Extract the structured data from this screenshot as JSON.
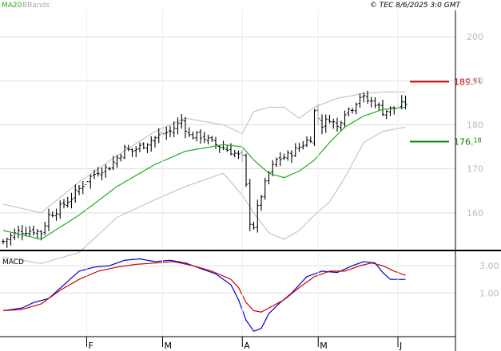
{
  "header": {
    "legend": [
      {
        "label": "MA20",
        "color": "#22aa22"
      },
      {
        "label": "BBands",
        "color": "#aaaaaa"
      }
    ],
    "copyright": "© TEC 8/6/2025 3:0 GMT"
  },
  "chart_data": [
    {
      "type": "ohlc",
      "title": "",
      "ylim": [
        152,
        206
      ],
      "y_ticks": [
        {
          "value": 160,
          "label": "160"
        },
        {
          "value": 170,
          "label": "170"
        },
        {
          "value": 180,
          "label": "180"
        },
        {
          "value": 190,
          "label": "190"
        },
        {
          "value": 200,
          "label": "200"
        }
      ],
      "x_labels": [
        {
          "index": 22,
          "label": "F"
        },
        {
          "index": 42,
          "label": "M"
        },
        {
          "index": 63,
          "label": "A"
        },
        {
          "index": 83,
          "label": "M"
        },
        {
          "index": 104,
          "label": "J"
        }
      ],
      "anchor_closes": [
        [
          0,
          153.5
        ],
        [
          4,
          155.8
        ],
        [
          8,
          156.0
        ],
        [
          10,
          155.5
        ],
        [
          12,
          159.5
        ],
        [
          14,
          160.5
        ],
        [
          18,
          163.5
        ],
        [
          22,
          167.5
        ],
        [
          25,
          169.5
        ],
        [
          28,
          170.5
        ],
        [
          32,
          174.5
        ],
        [
          34,
          174.0
        ],
        [
          38,
          176.0
        ],
        [
          42,
          178.0
        ],
        [
          44,
          178.5
        ],
        [
          47,
          181.0
        ],
        [
          49,
          177.5
        ],
        [
          52,
          177.5
        ],
        [
          56,
          175.5
        ],
        [
          60,
          174.0
        ],
        [
          63,
          172.5
        ],
        [
          64,
          166.0
        ],
        [
          65,
          158.0
        ],
        [
          66,
          157.0
        ],
        [
          67,
          161.0
        ],
        [
          68,
          164.0
        ],
        [
          70,
          169.0
        ],
        [
          72,
          172.0
        ],
        [
          75,
          173.0
        ],
        [
          78,
          175.0
        ],
        [
          81,
          177.0
        ],
        [
          82,
          183.0
        ],
        [
          84,
          180.0
        ],
        [
          86,
          181.5
        ],
        [
          88,
          179.5
        ],
        [
          90,
          183.0
        ],
        [
          92,
          184.0
        ],
        [
          94,
          186.5
        ],
        [
          96,
          185.5
        ],
        [
          98,
          185.0
        ],
        [
          100,
          183.0
        ],
        [
          102,
          183.5
        ],
        [
          104,
          184.0
        ],
        [
          106,
          185.0
        ]
      ],
      "ma20": [
        [
          0,
          156.0
        ],
        [
          10,
          154.0
        ],
        [
          20,
          159.5
        ],
        [
          30,
          166.0
        ],
        [
          40,
          171.0
        ],
        [
          48,
          174.0
        ],
        [
          58,
          175.5
        ],
        [
          63,
          175.0
        ],
        [
          66,
          172.0
        ],
        [
          70,
          169.0
        ],
        [
          74,
          168.0
        ],
        [
          78,
          169.5
        ],
        [
          82,
          172.0
        ],
        [
          86,
          176.0
        ],
        [
          90,
          179.5
        ],
        [
          95,
          182.0
        ],
        [
          100,
          183.5
        ],
        [
          106,
          184.0
        ]
      ],
      "bb_upper": [
        [
          0,
          162.0
        ],
        [
          10,
          160.0
        ],
        [
          20,
          167.0
        ],
        [
          30,
          173.0
        ],
        [
          40,
          178.5
        ],
        [
          48,
          181.5
        ],
        [
          58,
          180.0
        ],
        [
          63,
          178.0
        ],
        [
          66,
          183.0
        ],
        [
          70,
          184.0
        ],
        [
          74,
          184.0
        ],
        [
          78,
          181.5
        ],
        [
          82,
          184.0
        ],
        [
          88,
          186.0
        ],
        [
          94,
          187.0
        ],
        [
          100,
          187.5
        ],
        [
          106,
          187.5
        ]
      ],
      "bb_lower": [
        [
          0,
          150.0
        ],
        [
          10,
          148.5
        ],
        [
          20,
          151.0
        ],
        [
          30,
          159.0
        ],
        [
          40,
          163.0
        ],
        [
          48,
          166.0
        ],
        [
          58,
          169.0
        ],
        [
          63,
          164.0
        ],
        [
          66,
          160.0
        ],
        [
          70,
          155.5
        ],
        [
          74,
          154.0
        ],
        [
          78,
          156.0
        ],
        [
          82,
          159.5
        ],
        [
          86,
          162.5
        ],
        [
          90,
          168.0
        ],
        [
          95,
          176.0
        ],
        [
          100,
          178.5
        ],
        [
          106,
          179.5
        ]
      ],
      "levels": [
        {
          "name": "resistance",
          "label_main": "189.",
          "label_small": "81",
          "value": 189.81,
          "color": "#cc0000"
        },
        {
          "name": "support",
          "label_main": "176.",
          "label_small": "18",
          "value": 176.18,
          "color": "#008800"
        }
      ]
    },
    {
      "type": "line",
      "title": "MACD",
      "ylim": [
        -2.2,
        4.0
      ],
      "y_ticks": [
        {
          "value": 1.0,
          "label": "1.00"
        },
        {
          "value": 3.0,
          "label": "3.00"
        }
      ],
      "series": [
        {
          "name": "MACD",
          "color": "#0000cc",
          "points": [
            [
              0,
              -0.3
            ],
            [
              5,
              -0.1
            ],
            [
              8,
              0.3
            ],
            [
              12,
              0.6
            ],
            [
              16,
              1.6
            ],
            [
              20,
              2.6
            ],
            [
              24,
              2.9
            ],
            [
              28,
              3.0
            ],
            [
              32,
              3.4
            ],
            [
              36,
              3.5
            ],
            [
              40,
              3.3
            ],
            [
              44,
              3.4
            ],
            [
              48,
              3.2
            ],
            [
              52,
              2.8
            ],
            [
              56,
              2.4
            ],
            [
              60,
              1.6
            ],
            [
              62,
              0.5
            ],
            [
              64,
              -1.0
            ],
            [
              66,
              -1.8
            ],
            [
              68,
              -1.6
            ],
            [
              70,
              -0.5
            ],
            [
              73,
              0.3
            ],
            [
              76,
              1.0
            ],
            [
              80,
              2.2
            ],
            [
              84,
              2.6
            ],
            [
              88,
              2.5
            ],
            [
              92,
              3.0
            ],
            [
              95,
              3.3
            ],
            [
              98,
              3.2
            ],
            [
              100,
              2.5
            ],
            [
              102,
              2.0
            ],
            [
              104,
              2.0
            ],
            [
              106,
              2.0
            ]
          ]
        },
        {
          "name": "Signal",
          "color": "#cc0000",
          "points": [
            [
              0,
              -0.3
            ],
            [
              5,
              -0.2
            ],
            [
              10,
              0.2
            ],
            [
              15,
              1.2
            ],
            [
              20,
              2.0
            ],
            [
              25,
              2.6
            ],
            [
              30,
              2.9
            ],
            [
              35,
              3.1
            ],
            [
              40,
              3.2
            ],
            [
              45,
              3.3
            ],
            [
              50,
              3.0
            ],
            [
              55,
              2.6
            ],
            [
              60,
              2.0
            ],
            [
              62,
              1.4
            ],
            [
              64,
              0.3
            ],
            [
              66,
              -0.3
            ],
            [
              68,
              -0.4
            ],
            [
              70,
              -0.1
            ],
            [
              74,
              0.5
            ],
            [
              78,
              1.4
            ],
            [
              82,
              2.2
            ],
            [
              86,
              2.6
            ],
            [
              90,
              2.6
            ],
            [
              94,
              3.0
            ],
            [
              97,
              3.2
            ],
            [
              100,
              3.0
            ],
            [
              103,
              2.6
            ],
            [
              106,
              2.3
            ]
          ]
        }
      ]
    }
  ]
}
